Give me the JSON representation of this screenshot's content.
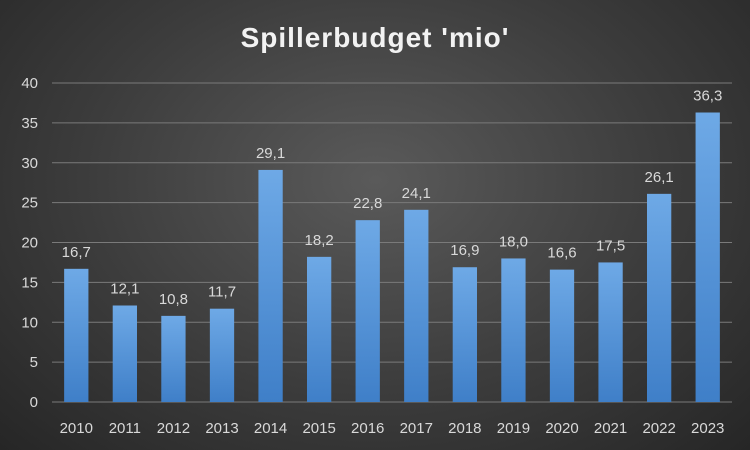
{
  "chart_data": {
    "type": "bar",
    "title": "Spillerbudget 'mio'",
    "xlabel": "",
    "ylabel": "",
    "categories": [
      "2010",
      "2011",
      "2012",
      "2013",
      "2014",
      "2015",
      "2016",
      "2017",
      "2018",
      "2019",
      "2020",
      "2021",
      "2022",
      "2023"
    ],
    "values": [
      16.7,
      12.1,
      10.8,
      11.7,
      29.1,
      18.2,
      22.8,
      24.1,
      16.9,
      18.0,
      16.6,
      17.5,
      26.1,
      36.3
    ],
    "data_labels": [
      "16,7",
      "12,1",
      "10,8",
      "11,7",
      "29,1",
      "18,2",
      "22,8",
      "24,1",
      "16,9",
      "18,0",
      "16,6",
      "17,5",
      "26,1",
      "36,3"
    ],
    "ylim": [
      0,
      40
    ],
    "yticks": [
      0,
      5,
      10,
      15,
      20,
      25,
      30,
      35,
      40
    ],
    "grid": true,
    "colors": {
      "bar_top": "#6ea9e6",
      "bar_bottom": "#3f7fc8",
      "grid": "#7a7a7a"
    }
  }
}
